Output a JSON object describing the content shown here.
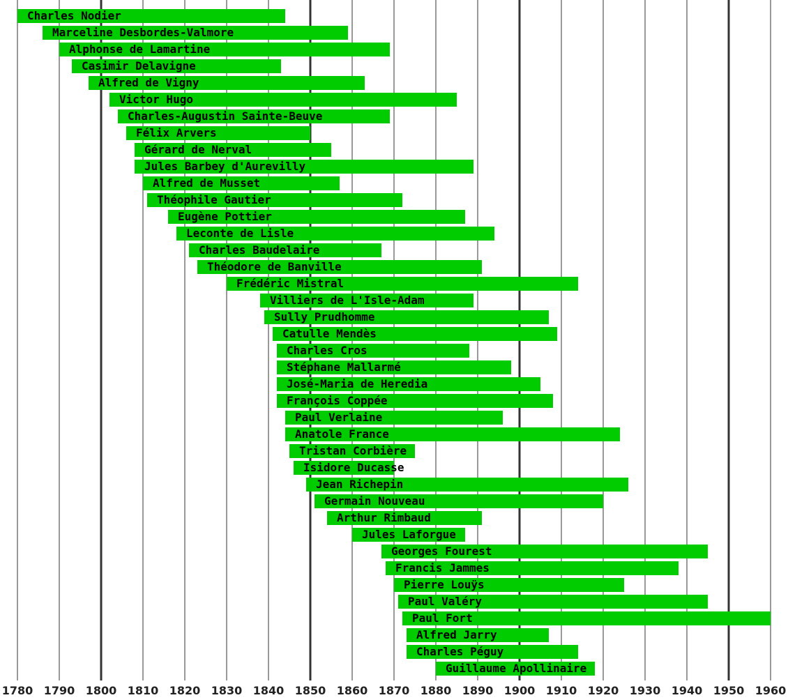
{
  "chart_data": {
    "type": "bar",
    "orientation": "horizontal-timeline",
    "bar_color": "#00cc00",
    "gridline_color": "#333333",
    "xlim": [
      1780,
      1960
    ],
    "grid": true,
    "xticks": [
      "1780",
      "1790",
      "1800",
      "1810",
      "1820",
      "1830",
      "1840",
      "1850",
      "1860",
      "1870",
      "1880",
      "1890",
      "1900",
      "1910",
      "1920",
      "1930",
      "1940",
      "1950",
      "1960"
    ],
    "major_ticks": [
      1800,
      1850,
      1900,
      1950
    ],
    "series": [
      {
        "label": "Charles Nodier",
        "start": 1780,
        "end": 1844
      },
      {
        "label": "Marceline Desbordes-Valmore",
        "start": 1786,
        "end": 1859
      },
      {
        "label": "Alphonse de Lamartine",
        "start": 1790,
        "end": 1869
      },
      {
        "label": "Casimir Delavigne",
        "start": 1793,
        "end": 1843
      },
      {
        "label": "Alfred de Vigny",
        "start": 1797,
        "end": 1863
      },
      {
        "label": "Victor Hugo",
        "start": 1802,
        "end": 1885
      },
      {
        "label": "Charles-Augustin Sainte-Beuve",
        "start": 1804,
        "end": 1869
      },
      {
        "label": "Félix Arvers",
        "start": 1806,
        "end": 1850
      },
      {
        "label": "Gérard de Nerval",
        "start": 1808,
        "end": 1855
      },
      {
        "label": "Jules Barbey d'Aurevilly",
        "start": 1808,
        "end": 1889
      },
      {
        "label": "Alfred de Musset",
        "start": 1810,
        "end": 1857
      },
      {
        "label": "Théophile Gautier",
        "start": 1811,
        "end": 1872
      },
      {
        "label": "Eugène Pottier",
        "start": 1816,
        "end": 1887
      },
      {
        "label": "Leconte de Lisle",
        "start": 1818,
        "end": 1894
      },
      {
        "label": "Charles Baudelaire",
        "start": 1821,
        "end": 1867
      },
      {
        "label": "Théodore de Banville",
        "start": 1823,
        "end": 1891
      },
      {
        "label": "Frédéric Mistral",
        "start": 1830,
        "end": 1914
      },
      {
        "label": "Villiers de L'Isle-Adam",
        "start": 1838,
        "end": 1889
      },
      {
        "label": "Sully Prudhomme",
        "start": 1839,
        "end": 1907
      },
      {
        "label": "Catulle Mendès",
        "start": 1841,
        "end": 1909
      },
      {
        "label": "Charles Cros",
        "start": 1842,
        "end": 1888
      },
      {
        "label": "Stéphane Mallarmé",
        "start": 1842,
        "end": 1898
      },
      {
        "label": "José-Maria de Heredia",
        "start": 1842,
        "end": 1905
      },
      {
        "label": "François Coppée",
        "start": 1842,
        "end": 1908
      },
      {
        "label": "Paul Verlaine",
        "start": 1844,
        "end": 1896
      },
      {
        "label": "Anatole France",
        "start": 1844,
        "end": 1924
      },
      {
        "label": "Tristan Corbière",
        "start": 1845,
        "end": 1875
      },
      {
        "label": "Isidore Ducasse",
        "start": 1846,
        "end": 1870
      },
      {
        "label": "Jean Richepin",
        "start": 1849,
        "end": 1926
      },
      {
        "label": "Germain Nouveau",
        "start": 1851,
        "end": 1920
      },
      {
        "label": "Arthur Rimbaud",
        "start": 1854,
        "end": 1891
      },
      {
        "label": "Jules Laforgue",
        "start": 1860,
        "end": 1887
      },
      {
        "label": "Georges Fourest",
        "start": 1867,
        "end": 1945
      },
      {
        "label": "Francis Jammes",
        "start": 1868,
        "end": 1938
      },
      {
        "label": "Pierre Louÿs",
        "start": 1870,
        "end": 1925
      },
      {
        "label": "Paul Valéry",
        "start": 1871,
        "end": 1945
      },
      {
        "label": "Paul Fort",
        "start": 1872,
        "end": 1960
      },
      {
        "label": "Alfred Jarry",
        "start": 1873,
        "end": 1907
      },
      {
        "label": "Charles Péguy",
        "start": 1873,
        "end": 1914
      },
      {
        "label": "Guillaume Apollinaire",
        "start": 1880,
        "end": 1918
      }
    ]
  }
}
